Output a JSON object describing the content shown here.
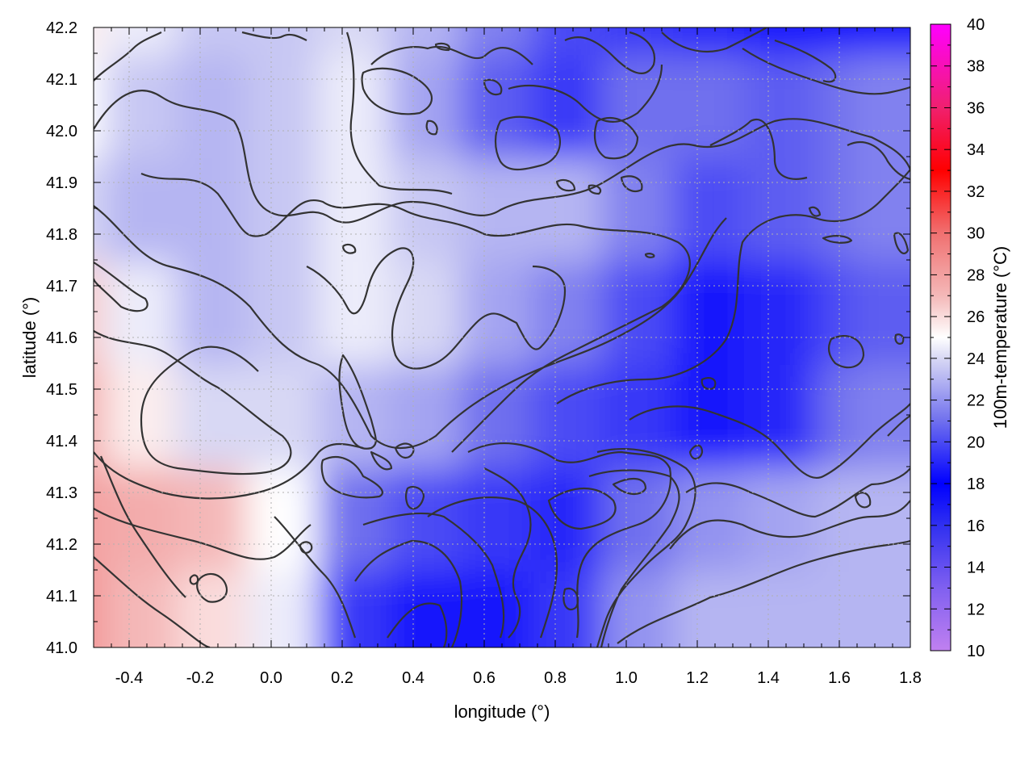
{
  "chart_data": {
    "type": "heatmap",
    "xlabel": "longitude (°)",
    "ylabel": "latitude (°)",
    "colorbar_label": "100m-temperature (°C)",
    "xlim": [
      -0.5,
      1.8
    ],
    "ylim": [
      41.0,
      42.2
    ],
    "x_ticks": [
      -0.4,
      -0.2,
      0.0,
      0.2,
      0.4,
      0.6,
      0.8,
      1.0,
      1.2,
      1.4,
      1.6,
      1.8
    ],
    "x_tick_labels": [
      "-0.4",
      "-0.2",
      "0.0",
      "0.2",
      "0.4",
      "0.6",
      "0.8",
      "1.0",
      "1.2",
      "1.4",
      "1.6",
      "1.8"
    ],
    "y_ticks": [
      41.0,
      41.1,
      41.2,
      41.3,
      41.4,
      41.5,
      41.6,
      41.7,
      41.8,
      41.9,
      42.0,
      42.1,
      42.2
    ],
    "y_tick_labels": [
      "41.0",
      "41.1",
      "41.2",
      "41.3",
      "41.4",
      "41.5",
      "41.6",
      "41.7",
      "41.8",
      "41.9",
      "42.0",
      "42.1",
      "42.2"
    ],
    "colorbar_range": [
      10,
      40
    ],
    "colorbar_ticks": [
      10,
      12,
      14,
      16,
      18,
      20,
      22,
      24,
      26,
      28,
      30,
      32,
      34,
      36,
      38,
      40
    ],
    "colorbar_tick_labels": [
      "10",
      "12",
      "14",
      "16",
      "18",
      "20",
      "22",
      "24",
      "26",
      "28",
      "30",
      "32",
      "34",
      "36",
      "38",
      "40"
    ],
    "colormap": [
      {
        "value": 10,
        "color": "#c080f0"
      },
      {
        "value": 13,
        "color": "#8060f0"
      },
      {
        "value": 16,
        "color": "#3030f0"
      },
      {
        "value": 18,
        "color": "#0000ff"
      },
      {
        "value": 21,
        "color": "#7070ee"
      },
      {
        "value": 24,
        "color": "#d8d8f4"
      },
      {
        "value": 25,
        "color": "#ffffff"
      },
      {
        "value": 27,
        "color": "#f4b8b8"
      },
      {
        "value": 30,
        "color": "#f07070"
      },
      {
        "value": 33,
        "color": "#ff0000"
      },
      {
        "value": 36,
        "color": "#f0206e"
      },
      {
        "value": 40,
        "color": "#ff00ff"
      }
    ],
    "grid": true,
    "contours": true,
    "field_grid": {
      "lon": [
        -0.5,
        -0.3,
        -0.1,
        0.1,
        0.3,
        0.5,
        0.7,
        0.9,
        1.1,
        1.3,
        1.5,
        1.7,
        1.8
      ],
      "lat": [
        42.2,
        42.0,
        41.8,
        41.6,
        41.4,
        41.2,
        41.0
      ],
      "temperature": [
        [
          25.5,
          24.5,
          23.5,
          23.5,
          24.0,
          23.0,
          21.5,
          20.0,
          19.5,
          19.0,
          18.5,
          18.5,
          18.5
        ],
        [
          25.0,
          23.5,
          23.0,
          23.5,
          24.5,
          22.5,
          20.5,
          19.5,
          21.0,
          21.0,
          20.5,
          21.0,
          21.5
        ],
        [
          24.0,
          23.0,
          23.0,
          23.5,
          24.5,
          23.5,
          23.0,
          23.0,
          21.5,
          20.0,
          20.5,
          21.0,
          21.5
        ],
        [
          26.5,
          24.5,
          23.0,
          23.5,
          24.5,
          24.0,
          22.5,
          21.5,
          20.0,
          18.5,
          19.0,
          20.0,
          20.5
        ],
        [
          27.5,
          25.5,
          24.0,
          24.0,
          23.0,
          22.5,
          21.0,
          20.0,
          19.5,
          18.5,
          19.0,
          21.0,
          21.5
        ],
        [
          28.0,
          27.5,
          27.0,
          25.0,
          21.0,
          20.0,
          19.5,
          19.0,
          21.0,
          22.0,
          22.5,
          23.0,
          23.0
        ],
        [
          28.5,
          27.0,
          26.0,
          24.5,
          19.5,
          18.5,
          18.5,
          19.5,
          22.0,
          23.0,
          23.0,
          23.0,
          23.0
        ]
      ]
    }
  }
}
